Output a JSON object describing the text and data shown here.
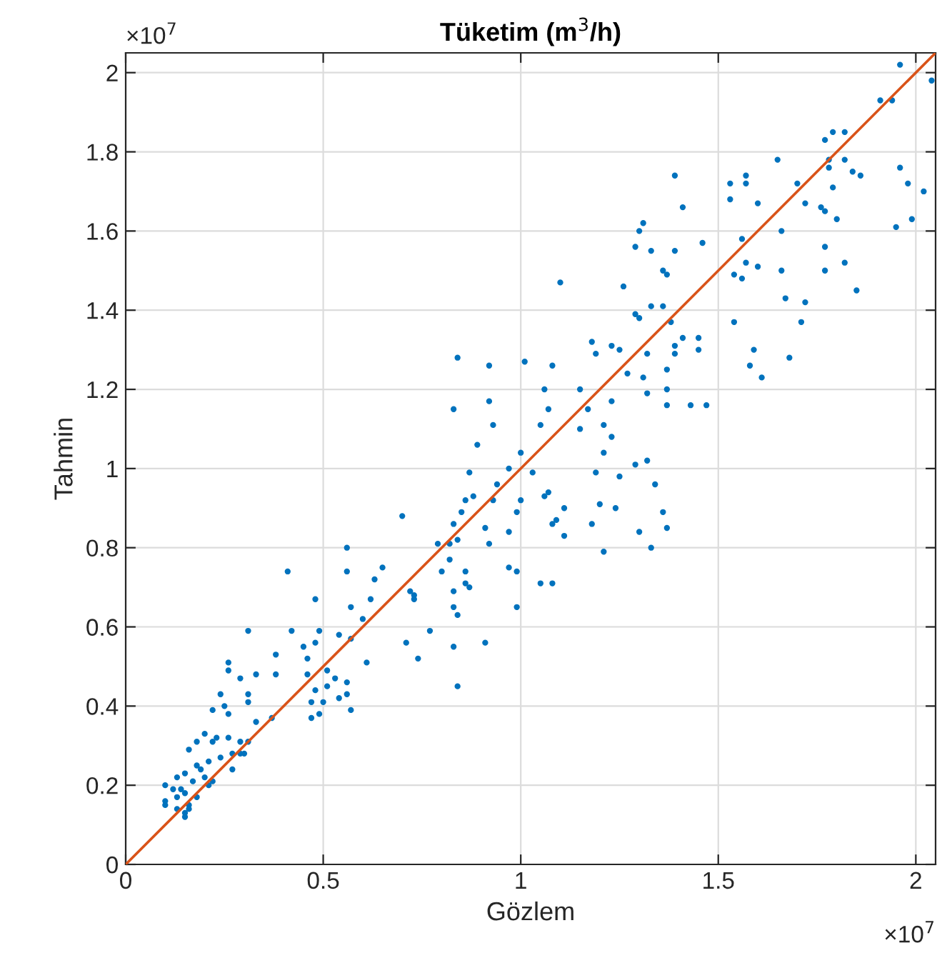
{
  "chart_data": {
    "type": "scatter",
    "title": "Tüketim (m$^{3}$/h)",
    "xlabel": "Gözlem",
    "ylabel": "Tahmin",
    "annotations": [
      "×10$^{7}$",
      "×10$^{7}$"
    ],
    "xlim": [
      0,
      2.05
    ],
    "ylim": [
      0,
      2.05
    ],
    "xticks": [
      0,
      0.5,
      1,
      1.5,
      2
    ],
    "yticks": [
      0,
      0.2,
      0.4,
      0.6,
      0.8,
      1,
      1.2,
      1.4,
      1.6,
      1.8,
      2
    ],
    "grid": true,
    "marker": "circle",
    "series": [
      {
        "color": "#0072bd",
        "x": [
          0.7,
          0.56,
          0.41,
          0.56,
          0.65,
          0.63,
          0.48,
          0.57,
          0.62,
          0.6,
          0.73,
          0.31,
          0.42,
          0.49,
          0.54,
          0.57,
          0.45,
          0.48,
          0.38,
          0.26,
          0.46,
          0.61,
          0.71,
          0.74,
          0.26,
          0.29,
          0.33,
          0.38,
          0.46,
          0.51,
          0.53,
          0.56,
          0.51,
          0.24,
          0.31,
          0.48,
          0.56,
          0.25,
          0.22,
          0.31,
          0.47,
          0.5,
          0.54,
          0.26,
          0.37,
          0.33,
          0.47,
          0.49,
          0.57,
          0.2,
          0.18,
          0.16,
          0.23,
          0.26,
          0.29,
          0.31,
          0.24,
          0.27,
          0.29,
          0.21,
          0.18,
          0.15,
          0.19,
          0.27,
          0.22,
          0.13,
          0.1,
          0.14,
          0.17,
          0.2,
          0.1,
          0.1,
          0.13,
          0.15,
          0.16,
          0.13,
          0.15,
          0.15,
          0.16,
          0.18,
          0.21,
          0.12,
          0.3,
          0.22,
          0.84,
          0.92,
          1.01,
          1.08,
          1.18,
          1.19,
          1.23,
          1.25,
          1.27,
          1.06,
          1.15,
          0.83,
          0.92,
          0.93,
          1.07,
          1.05,
          1.17,
          1.23,
          1.15,
          1.21,
          1.23,
          0.89,
          1.21,
          1.29,
          0.87,
          1.0,
          0.97,
          1.03,
          1.19,
          1.25,
          0.94,
          0.86,
          0.88,
          0.93,
          1.0,
          1.07,
          1.06,
          1.2,
          1.24,
          0.85,
          0.99,
          1.11,
          1.09,
          1.08,
          0.83,
          0.91,
          0.97,
          1.18,
          1.11,
          0.84,
          0.82,
          0.92,
          0.79,
          1.21,
          0.82,
          0.8,
          0.86,
          0.97,
          0.99,
          0.86,
          0.87,
          1.05,
          1.08,
          0.72,
          0.73,
          0.83,
          0.83,
          0.84,
          0.99,
          0.77,
          0.83,
          0.91,
          0.84,
          1.96,
          2.04,
          1.91,
          1.94,
          1.77,
          1.79,
          1.82,
          1.65,
          1.78,
          1.78,
          1.82,
          1.84,
          1.86,
          1.96,
          1.98,
          2.02,
          1.7,
          1.79,
          1.39,
          1.41,
          1.53,
          1.57,
          1.57,
          1.53,
          1.6,
          1.72,
          1.76,
          1.77,
          1.8,
          1.99,
          1.95,
          1.66,
          1.31,
          1.3,
          1.29,
          1.33,
          1.39,
          1.46,
          1.56,
          1.36,
          1.37,
          1.57,
          1.6,
          1.54,
          1.56,
          1.66,
          1.77,
          1.77,
          1.82,
          1.85,
          1.1,
          1.26,
          1.67,
          1.72,
          1.71,
          1.54,
          1.29,
          1.3,
          1.33,
          1.36,
          1.38,
          1.41,
          1.45,
          1.45,
          1.39,
          1.39,
          1.32,
          1.59,
          1.58,
          1.68,
          1.61,
          1.37,
          1.31,
          1.37,
          1.32,
          1.37,
          1.43,
          1.47,
          1.32,
          1.34,
          1.36,
          1.3,
          1.33,
          1.37
        ],
        "values": [
          0.88,
          0.8,
          0.74,
          0.74,
          0.75,
          0.72,
          0.67,
          0.65,
          0.67,
          0.62,
          0.68,
          0.59,
          0.59,
          0.59,
          0.58,
          0.57,
          0.55,
          0.56,
          0.53,
          0.51,
          0.52,
          0.51,
          0.56,
          0.52,
          0.49,
          0.47,
          0.48,
          0.48,
          0.48,
          0.49,
          0.47,
          0.46,
          0.45,
          0.43,
          0.43,
          0.44,
          0.43,
          0.4,
          0.39,
          0.41,
          0.41,
          0.41,
          0.42,
          0.38,
          0.37,
          0.36,
          0.37,
          0.38,
          0.39,
          0.33,
          0.31,
          0.29,
          0.32,
          0.32,
          0.31,
          0.31,
          0.27,
          0.28,
          0.28,
          0.26,
          0.25,
          0.23,
          0.24,
          0.24,
          0.21,
          0.22,
          0.2,
          0.19,
          0.21,
          0.22,
          0.16,
          0.15,
          0.17,
          0.18,
          0.15,
          0.14,
          0.13,
          0.12,
          0.14,
          0.17,
          0.2,
          0.19,
          0.28,
          0.31,
          1.28,
          1.26,
          1.27,
          1.26,
          1.32,
          1.29,
          1.31,
          1.3,
          1.24,
          1.2,
          1.2,
          1.15,
          1.17,
          1.11,
          1.15,
          1.11,
          1.15,
          1.17,
          1.1,
          1.11,
          1.08,
          1.06,
          1.04,
          1.01,
          0.99,
          1.04,
          1.0,
          0.99,
          0.99,
          0.98,
          0.96,
          0.92,
          0.93,
          0.92,
          0.92,
          0.94,
          0.93,
          0.91,
          0.9,
          0.89,
          0.89,
          0.9,
          0.87,
          0.86,
          0.86,
          0.85,
          0.84,
          0.86,
          0.83,
          0.82,
          0.81,
          0.81,
          0.81,
          0.79,
          0.77,
          0.74,
          0.74,
          0.75,
          0.74,
          0.71,
          0.7,
          0.71,
          0.71,
          0.69,
          0.67,
          0.69,
          0.65,
          0.63,
          0.65,
          0.59,
          0.55,
          0.56,
          0.45,
          2.02,
          1.98,
          1.93,
          1.93,
          1.83,
          1.85,
          1.85,
          1.78,
          1.78,
          1.76,
          1.78,
          1.75,
          1.74,
          1.76,
          1.72,
          1.7,
          1.72,
          1.71,
          1.74,
          1.66,
          1.72,
          1.74,
          1.72,
          1.68,
          1.67,
          1.67,
          1.66,
          1.65,
          1.63,
          1.63,
          1.61,
          1.6,
          1.62,
          1.6,
          1.56,
          1.55,
          1.55,
          1.57,
          1.58,
          1.5,
          1.49,
          1.52,
          1.51,
          1.49,
          1.48,
          1.5,
          1.56,
          1.5,
          1.52,
          1.45,
          1.47,
          1.46,
          1.43,
          1.42,
          1.37,
          1.37,
          1.39,
          1.38,
          1.41,
          1.41,
          1.37,
          1.33,
          1.33,
          1.3,
          1.31,
          1.29,
          1.29,
          1.3,
          1.26,
          1.28,
          1.23,
          1.25,
          1.23,
          1.2,
          1.19,
          1.16,
          1.16,
          1.16,
          1.02,
          0.96,
          0.89,
          0.84,
          0.8,
          0.85
        ]
      },
      {
        "type": "line",
        "color": "#d95319",
        "marker": "none",
        "line_style": "solid",
        "x": [
          0,
          2.05
        ],
        "values": [
          0,
          2.05
        ]
      }
    ]
  }
}
